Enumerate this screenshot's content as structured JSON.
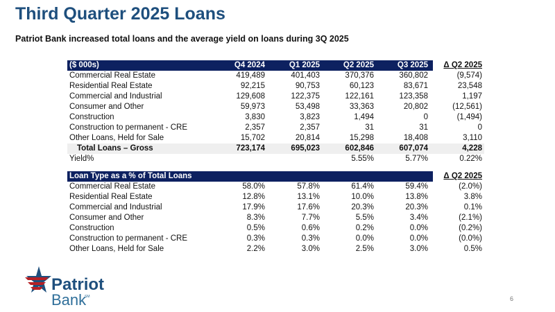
{
  "title": "Third Quarter 2025 Loans",
  "subtitle": "Patriot Bank increased total loans and the average yield on loans during 3Q 2025",
  "table1": {
    "header": [
      "($ 000s)",
      "Q4 2024",
      "Q1 2025",
      "Q2 2025",
      "Q3 2025",
      "Δ Q2 2025"
    ],
    "rows": [
      [
        "Commercial Real Estate",
        "419,489",
        "401,403",
        "370,376",
        "360,802",
        "(9,574)"
      ],
      [
        "Residential Real Estate",
        "92,215",
        "90,753",
        "60,123",
        "83,671",
        "23,548"
      ],
      [
        "Commercial and Industrial",
        "129,608",
        "122,375",
        "122,161",
        "123,358",
        "1,197"
      ],
      [
        "Consumer and Other",
        "59,973",
        "53,498",
        "33,363",
        "20,802",
        "(12,561)"
      ],
      [
        "Construction",
        "3,830",
        "3,823",
        "1,494",
        "0",
        "(1,494)"
      ],
      [
        "Construction to permanent - CRE",
        "2,357",
        "2,357",
        "31",
        "31",
        "0"
      ],
      [
        "Other Loans, Held for Sale",
        "15,702",
        "20,814",
        "15,298",
        "18,408",
        "3,110"
      ]
    ],
    "total": [
      "Total Loans – Gross",
      "723,174",
      "695,023",
      "602,846",
      "607,074",
      "4,228"
    ],
    "yield": [
      "Yield%",
      "",
      "",
      "5.55%",
      "5.77%",
      "0.22%"
    ]
  },
  "table2": {
    "header": [
      "Loan Type as a % of Total Loans",
      "",
      "",
      "",
      "",
      "Δ Q2 2025"
    ],
    "rows": [
      [
        "Commercial Real Estate",
        "58.0%",
        "57.8%",
        "61.4%",
        "59.4%",
        "(2.0%)"
      ],
      [
        "Residential Real Estate",
        "12.8%",
        "13.1%",
        "10.0%",
        "13.8%",
        "3.8%"
      ],
      [
        "Commercial and Industrial",
        "17.9%",
        "17.6%",
        "20.3%",
        "20.3%",
        "0.1%"
      ],
      [
        "Consumer and Other",
        "8.3%",
        "7.7%",
        "5.5%",
        "3.4%",
        "(2.1%)"
      ],
      [
        "Construction",
        "0.5%",
        "0.6%",
        "0.2%",
        "0.0%",
        "(0.2%)"
      ],
      [
        "Construction to permanent - CRE",
        "0.3%",
        "0.3%",
        "0.0%",
        "0.0%",
        "(0.0%)"
      ],
      [
        "Other Loans, Held for Sale",
        "2.2%",
        "3.0%",
        "2.5%",
        "3.0%",
        "0.5%"
      ]
    ]
  },
  "logo": {
    "line1": "Patriot",
    "line2": "Bank",
    "mark": "SM"
  },
  "page_number": "6"
}
